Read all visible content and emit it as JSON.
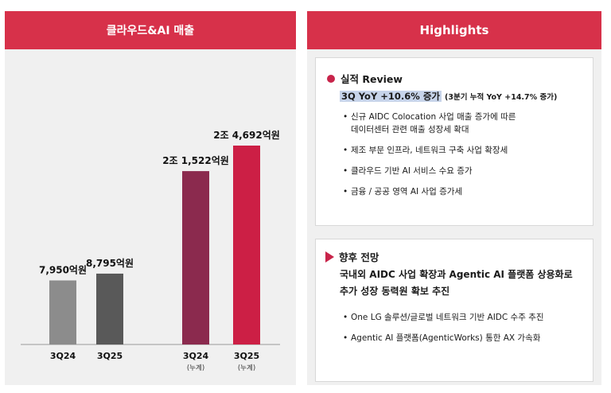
{
  "left_panel": {
    "title": "클라우드&AI 매출"
  },
  "chart_data": {
    "type": "bar",
    "categories": [
      "3Q24",
      "3Q25",
      "3Q24",
      "3Q25"
    ],
    "sublabels": [
      "",
      "",
      "(누계)",
      "(누계)"
    ],
    "values": [
      7950,
      8795,
      21522,
      24692
    ],
    "data_labels": [
      "7,950억원",
      "8,795억원",
      "2조 1,522억원",
      "2조 4,692억원"
    ],
    "colors": [
      "#8c8c8c",
      "#595959",
      "#8b2a4e",
      "#cc1f45"
    ]
  },
  "right_panel": {
    "title": "Highlights",
    "review": {
      "title": "실적 Review",
      "headline": "3Q YoY +10.6% 증가",
      "headline_note": "(3분기 누적 YoY +14.7% 증가)",
      "bullets": [
        "신규 AIDC Colocation 사업 매출 증가에 따른\n데이터센터 관련 매출 성장세 확대",
        "제조 부문 인프라, 네트워크 구축 사업 확장세",
        "클라우드 기반 AI 서비스 수요 증가",
        "금융 / 공공 영역 AI 사업 증가세"
      ]
    },
    "outlook": {
      "title": "향후 전망",
      "headline_1": "국내외 AIDC 사업 확장과 Agentic AI 플랫폼 상용화로",
      "headline_2": "추가 성장 동력원 확보 추진",
      "bullets": [
        "One LG 솔루션/글로벌 네트워크 기반 AIDC 수주 추진",
        "Agentic AI 플랫폼(AgenticWorks) 통한 AX 가속화"
      ]
    }
  }
}
